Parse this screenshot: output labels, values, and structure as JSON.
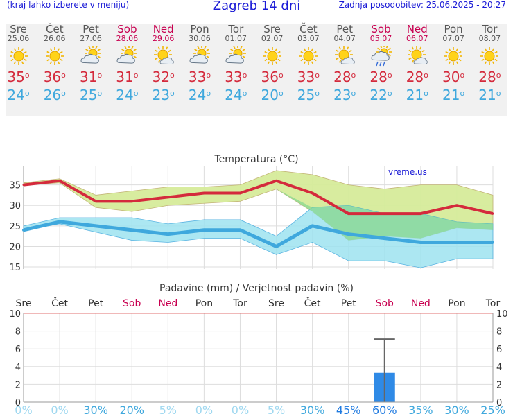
{
  "header": {
    "left_note": "(kraj lahko izberete v meniju)",
    "title": "Zagreb 14 dni",
    "updated": "Zadnja posodobitev: 25.06.2025 - 20:27"
  },
  "colors": {
    "header_blue": "#1a1ad6",
    "weekend": "#c80050",
    "max_red": "#d42a3c",
    "min_blue": "#3fa8dd",
    "max_band": "#d6ec9a",
    "min_band": "#9ee3f0",
    "overlap": "#88d890",
    "bar": "#2f8ae6"
  },
  "days": [
    {
      "name": "Sre",
      "date": "25.06",
      "weekend": false,
      "icon": "sun-icon",
      "max": "35",
      "min": "24"
    },
    {
      "name": "Čet",
      "date": "26.06",
      "weekend": false,
      "icon": "sun-icon",
      "max": "36",
      "min": "26"
    },
    {
      "name": "Pet",
      "date": "27.06",
      "weekend": false,
      "icon": "sun-cloud-icon",
      "max": "31",
      "min": "25"
    },
    {
      "name": "Sob",
      "date": "28.06",
      "weekend": true,
      "icon": "sun-cloud-icon",
      "max": "31",
      "min": "24"
    },
    {
      "name": "Ned",
      "date": "29.06",
      "weekend": true,
      "icon": "sun-small-cloud-icon",
      "max": "32",
      "min": "23"
    },
    {
      "name": "Pon",
      "date": "30.06",
      "weekend": false,
      "icon": "sun-cloud-icon",
      "max": "33",
      "min": "24"
    },
    {
      "name": "Tor",
      "date": "01.07",
      "weekend": false,
      "icon": "sun-cloud-icon",
      "max": "33",
      "min": "24"
    },
    {
      "name": "Sre",
      "date": "02.07",
      "weekend": false,
      "icon": "sun-icon",
      "max": "36",
      "min": "20"
    },
    {
      "name": "Čet",
      "date": "03.07",
      "weekend": false,
      "icon": "sun-icon",
      "max": "33",
      "min": "25"
    },
    {
      "name": "Pet",
      "date": "04.07",
      "weekend": false,
      "icon": "sun-small-cloud-icon",
      "max": "28",
      "min": "23"
    },
    {
      "name": "Sob",
      "date": "05.07",
      "weekend": true,
      "icon": "sun-rain-icon",
      "max": "28",
      "min": "22"
    },
    {
      "name": "Ned",
      "date": "06.07",
      "weekend": true,
      "icon": "sun-small-cloud-icon",
      "max": "28",
      "min": "21"
    },
    {
      "name": "Pon",
      "date": "07.07",
      "weekend": false,
      "icon": "sun-icon",
      "max": "30",
      "min": "21"
    },
    {
      "name": "Tor",
      "date": "08.07",
      "weekend": false,
      "icon": "sun-icon",
      "max": "28",
      "min": "21"
    }
  ],
  "chart_data": [
    {
      "type": "line",
      "title": "Temperatura (°C)",
      "watermark": "vreme.us",
      "categories": [
        "25.06",
        "26.06",
        "27.06",
        "28.06",
        "29.06",
        "30.06",
        "01.07",
        "02.07",
        "03.07",
        "04.07",
        "05.07",
        "06.07",
        "07.07",
        "08.07"
      ],
      "ylim": [
        14.5,
        39.5
      ],
      "yticks": [
        15,
        20,
        25,
        30,
        35
      ],
      "grid": true,
      "series": [
        {
          "name": "max",
          "values": [
            35,
            36,
            31,
            31,
            32,
            33,
            33,
            36,
            33,
            28,
            28,
            28,
            30,
            28
          ]
        },
        {
          "name": "min",
          "values": [
            24,
            26,
            25,
            24,
            23,
            24,
            24,
            20,
            25,
            23,
            22,
            21,
            21,
            21
          ]
        }
      ],
      "bands": {
        "max_upper": [
          35.5,
          36.5,
          32.5,
          33.5,
          34.5,
          34.5,
          35,
          38.5,
          37.5,
          35,
          34,
          35,
          35,
          32.5
        ],
        "max_lower": [
          35,
          35.5,
          29.5,
          28.5,
          30,
          30.5,
          31,
          34,
          28.5,
          21.5,
          22.5,
          22,
          24.5,
          24
        ],
        "min_upper": [
          25,
          27,
          27,
          27,
          25.5,
          26.5,
          26.5,
          22.5,
          29.5,
          30,
          28,
          28,
          26,
          25.5
        ],
        "min_lower": [
          24,
          25.5,
          23.5,
          21.5,
          21,
          22,
          22,
          18,
          21,
          16.5,
          16.5,
          14.8,
          17,
          17
        ]
      }
    },
    {
      "type": "bar",
      "title": "Padavine (mm) / Verjetnost padavin (%)",
      "categories": [
        "Sre",
        "Čet",
        "Pet",
        "Sob",
        "Ned",
        "Pon",
        "Tor",
        "Sre",
        "Čet",
        "Pet",
        "Sob",
        "Ned",
        "Pon",
        "Tor"
      ],
      "weekend": [
        false,
        false,
        false,
        true,
        true,
        false,
        false,
        false,
        false,
        false,
        true,
        true,
        false,
        false
      ],
      "ylim": [
        0,
        10
      ],
      "yticks": [
        0,
        2,
        4,
        6,
        8,
        10
      ],
      "values": [
        0,
        0,
        0,
        0,
        0,
        0,
        0,
        0,
        0,
        0,
        3.3,
        0,
        0,
        0
      ],
      "error_high": [
        null,
        null,
        null,
        null,
        null,
        null,
        null,
        null,
        null,
        null,
        7.1,
        null,
        null,
        null
      ],
      "probability": [
        "0%",
        "0%",
        "30%",
        "20%",
        "5%",
        "0%",
        "0%",
        "5%",
        "30%",
        "45%",
        "60%",
        "35%",
        "30%",
        "25%"
      ]
    }
  ]
}
